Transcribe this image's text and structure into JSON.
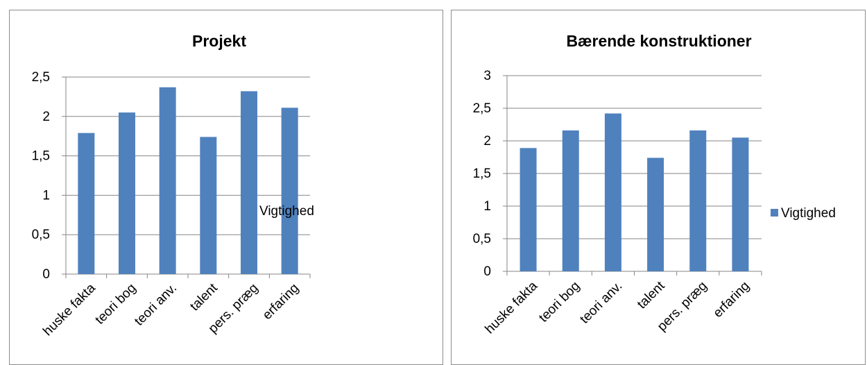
{
  "chart_data": [
    {
      "type": "bar",
      "title": "Projekt",
      "categories": [
        "huske fakta",
        "teori bog",
        "teori anv.",
        "talent",
        "pers. præg",
        "erfaring"
      ],
      "series": [
        {
          "name": "Vigtighed",
          "color": "#4f81bd",
          "values": [
            1.79,
            2.05,
            2.37,
            1.74,
            2.32,
            2.11
          ]
        }
      ],
      "y_ticks": [
        "0",
        "0,5",
        "1",
        "1,5",
        "2",
        "2,5"
      ],
      "ylim": [
        0,
        2.5
      ],
      "grid": true,
      "legend_position": "right"
    },
    {
      "type": "bar",
      "title": "Bærende konstruktioner",
      "categories": [
        "huske fakta",
        "teori bog",
        "teori anv.",
        "talent",
        "pers. præg",
        "erfaring"
      ],
      "series": [
        {
          "name": "Vigtighed",
          "color": "#4f81bd",
          "values": [
            1.89,
            2.16,
            2.42,
            1.74,
            2.16,
            2.05
          ]
        }
      ],
      "y_ticks": [
        "0",
        "0,5",
        "1",
        "1,5",
        "2",
        "2,5",
        "3"
      ],
      "ylim": [
        0,
        3
      ],
      "grid": true,
      "legend_position": "right"
    }
  ]
}
